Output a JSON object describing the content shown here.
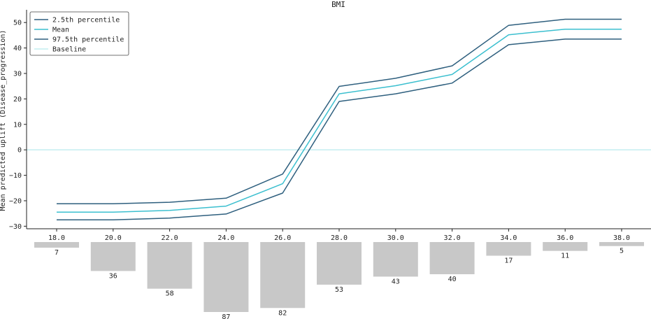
{
  "chart_data": {
    "type": "line",
    "title": "BMI",
    "xlabel": "",
    "ylabel": "Mean predicted uplift (Disease_progression)",
    "x": [
      18.0,
      20.0,
      22.0,
      24.0,
      26.0,
      28.0,
      30.0,
      32.0,
      34.0,
      36.0,
      38.0
    ],
    "x_tick_labels": [
      "18.0",
      "20.0",
      "22.0",
      "24.0",
      "26.0",
      "28.0",
      "30.0",
      "32.0",
      "34.0",
      "36.0",
      "38.0"
    ],
    "ylim": [
      -31,
      55
    ],
    "y_ticks": [
      -30,
      -20,
      -10,
      0,
      10,
      20,
      30,
      40,
      50
    ],
    "y_tick_labels": [
      "−30",
      "−20",
      "−10",
      "0",
      "10",
      "20",
      "30",
      "40",
      "50"
    ],
    "series": [
      {
        "name": "2.5th percentile",
        "color": "#2e5f7e",
        "values": [
          -27.5,
          -27.5,
          -26.8,
          -25.2,
          -17.0,
          19.0,
          22.0,
          26.2,
          41.3,
          43.5,
          43.5
        ]
      },
      {
        "name": "Mean",
        "color": "#3bbfcf",
        "values": [
          -24.5,
          -24.5,
          -23.8,
          -22.1,
          -13.3,
          22.0,
          25.2,
          29.6,
          45.2,
          47.4,
          47.4
        ]
      },
      {
        "name": "97.5th percentile",
        "color": "#2e5f7e",
        "values": [
          -21.2,
          -21.2,
          -20.6,
          -19.0,
          -9.5,
          24.9,
          28.1,
          33.0,
          48.9,
          51.3,
          51.3
        ]
      }
    ],
    "baseline": {
      "name": "Baseline",
      "value": 0,
      "color": "#a6e4ea"
    },
    "legend": {
      "position": "top-left",
      "entries": [
        "2.5th percentile",
        "Mean",
        "97.5th percentile",
        "Baseline"
      ]
    },
    "grid": false,
    "histogram": {
      "color": "#c8c8c8",
      "categories": [
        "18.0",
        "20.0",
        "22.0",
        "24.0",
        "26.0",
        "28.0",
        "30.0",
        "32.0",
        "34.0",
        "36.0",
        "38.0"
      ],
      "counts": [
        7,
        36,
        58,
        87,
        82,
        53,
        43,
        40,
        17,
        11,
        5
      ],
      "count_labels": [
        "7",
        "36",
        "58",
        "87",
        "82",
        "53",
        "43",
        "40",
        "17",
        "11",
        "5"
      ]
    }
  }
}
